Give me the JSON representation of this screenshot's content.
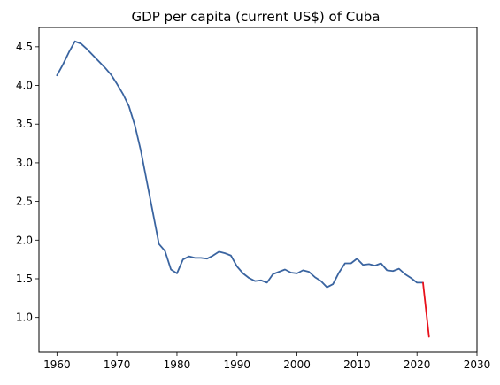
{
  "chart_data": {
    "type": "line",
    "title": "GDP per capita (current US$) of Cuba",
    "xlabel": "",
    "ylabel": "",
    "xlim": [
      1957,
      2030
    ],
    "ylim": [
      0.55,
      4.75
    ],
    "xticks": [
      1960,
      1970,
      1980,
      1990,
      2000,
      2010,
      2020,
      2030
    ],
    "yticks": [
      1.0,
      1.5,
      2.0,
      2.5,
      3.0,
      3.5,
      4.0,
      4.5
    ],
    "grid": false,
    "legend": "none",
    "series": [
      {
        "color": "#3a64a0",
        "x": [
          1960,
          1961,
          1962,
          1963,
          1964,
          1965,
          1966,
          1967,
          1968,
          1969,
          1970,
          1971,
          1972,
          1973,
          1974,
          1975,
          1976,
          1977,
          1978,
          1979,
          1980,
          1981,
          1982,
          1983,
          1984,
          1985,
          1986,
          1987,
          1988,
          1989,
          1990,
          1991,
          1992,
          1993,
          1994,
          1995,
          1996,
          1997,
          1998,
          1999,
          2000,
          2001,
          2002,
          2003,
          2004,
          2005,
          2006,
          2007,
          2008,
          2009,
          2010,
          2011,
          2012,
          2013,
          2014,
          2015,
          2016,
          2017,
          2018,
          2019,
          2020,
          2021
        ],
        "y": [
          4.13,
          4.27,
          4.43,
          4.57,
          4.54,
          4.47,
          4.39,
          4.31,
          4.23,
          4.14,
          4.02,
          3.89,
          3.73,
          3.48,
          3.15,
          2.75,
          2.35,
          1.95,
          1.86,
          1.62,
          1.57,
          1.75,
          1.79,
          1.77,
          1.77,
          1.76,
          1.8,
          1.85,
          1.83,
          1.8,
          1.66,
          1.57,
          1.51,
          1.47,
          1.48,
          1.45,
          1.56,
          1.59,
          1.62,
          1.58,
          1.57,
          1.61,
          1.59,
          1.52,
          1.47,
          1.39,
          1.43,
          1.58,
          1.7,
          1.7,
          1.76,
          1.68,
          1.69,
          1.67,
          1.7,
          1.61,
          1.6,
          1.63,
          1.56,
          1.51,
          1.45,
          1.45
        ]
      },
      {
        "color": "#e8111b",
        "x": [
          2021,
          2022
        ],
        "y": [
          1.45,
          0.75
        ]
      }
    ]
  }
}
